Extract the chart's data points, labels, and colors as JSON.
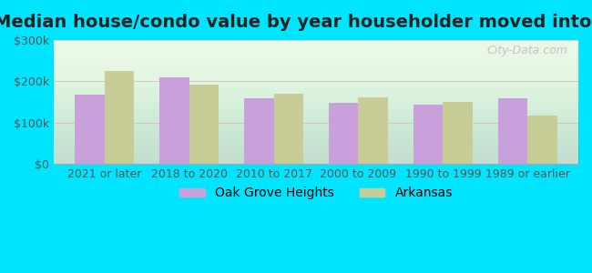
{
  "title": "Median house/condo value by year householder moved into unit",
  "categories": [
    "2021 or later",
    "2018 to 2020",
    "2010 to 2017",
    "2000 to 2009",
    "1990 to 1999",
    "1989 or earlier"
  ],
  "oak_grove": [
    168000,
    210000,
    158000,
    148000,
    143000,
    158000
  ],
  "arkansas": [
    225000,
    192000,
    170000,
    162000,
    150000,
    118000
  ],
  "oak_grove_color": "#c9a0dc",
  "arkansas_color": "#c8cc96",
  "background_outer": "#00e5ff",
  "background_inner": "#e8f8ee",
  "ylabel_color": "#555555",
  "ylim": [
    0,
    300000
  ],
  "yticks": [
    0,
    100000,
    200000,
    300000
  ],
  "ytick_labels": [
    "$0",
    "$100k",
    "$200k",
    "$300k"
  ],
  "watermark": "City-Data.com",
  "legend_labels": [
    "Oak Grove Heights",
    "Arkansas"
  ],
  "title_fontsize": 14,
  "axis_fontsize": 9,
  "legend_fontsize": 10
}
